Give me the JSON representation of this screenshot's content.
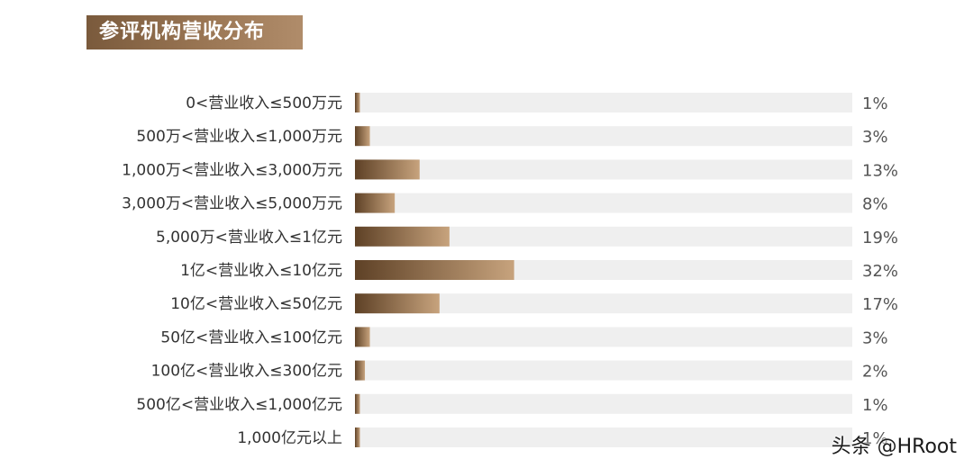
{
  "title": "参评机构营收分布",
  "watermark": "头条 @HRoot",
  "colors": {
    "track": "#efefef",
    "bar_start": "#5e4126",
    "bar_end": "#c7a37d"
  },
  "chart_data": {
    "type": "bar",
    "orientation": "horizontal",
    "title": "参评机构营收分布",
    "categories": [
      "0<营业收入≤500万元",
      "500万<营业收入≤1,000万元",
      "1,000万<营业收入≤3,000万元",
      "3,000万<营业收入≤5,000万元",
      "5,000万<营业收入≤1亿元",
      "1亿<营业收入≤10亿元",
      "10亿<营业收入≤50亿元",
      "50亿<营业收入≤100亿元",
      "100亿<营业收入≤300亿元",
      "500亿<营业收入≤1,000亿元",
      "1,000亿元以上"
    ],
    "values": [
      1,
      3,
      13,
      8,
      19,
      32,
      17,
      3,
      2,
      1,
      1
    ],
    "value_labels": [
      "1%",
      "3%",
      "13%",
      "8%",
      "19%",
      "32%",
      "17%",
      "3%",
      "2%",
      "1%",
      "1%"
    ],
    "unit": "%",
    "xlim": [
      0,
      100
    ],
    "grid": false,
    "legend": "none"
  }
}
